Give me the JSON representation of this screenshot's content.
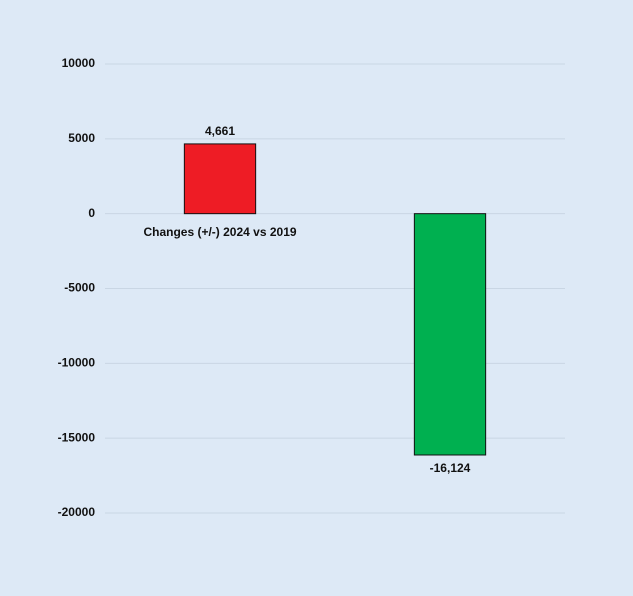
{
  "chart_data": {
    "type": "bar",
    "categories": [
      "Changes (+/-) 2024 vs 2019",
      null
    ],
    "values": [
      4661,
      -16124
    ],
    "value_labels": [
      "4,661",
      "-16,124"
    ],
    "colors": [
      "#ee1c25",
      "#00b050"
    ],
    "ylim": [
      -20000,
      10000
    ],
    "yticks": [
      -20000,
      -15000,
      -10000,
      -5000,
      0,
      5000,
      10000
    ],
    "grid": true
  }
}
